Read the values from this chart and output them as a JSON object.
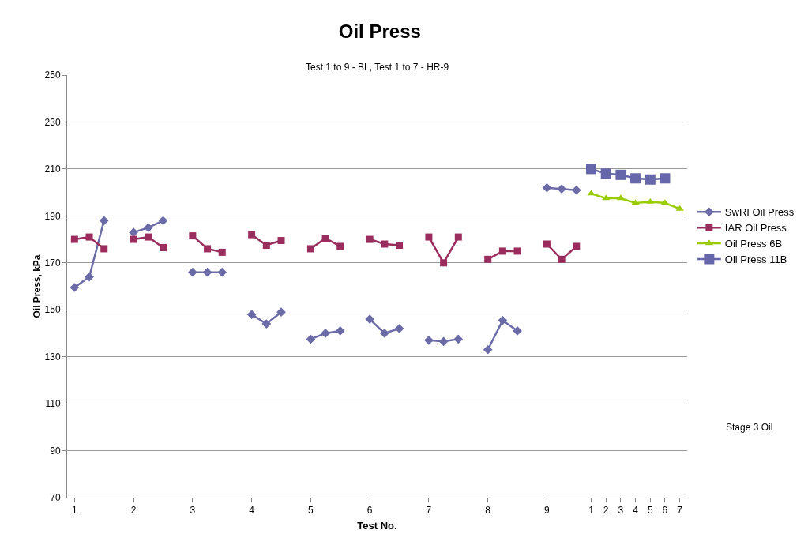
{
  "chart_data": {
    "type": "line",
    "title": "Oil Press",
    "subtitle": "Test 1 to 9 - BL, Test 1 to 7 - HR-9",
    "xlabel": "Test No.",
    "ylabel": "Oil Press, kPa",
    "categories": [
      "1",
      null,
      null,
      null,
      "2",
      null,
      null,
      null,
      "3",
      null,
      null,
      null,
      "4",
      null,
      null,
      null,
      "5",
      null,
      null,
      null,
      "6",
      null,
      null,
      null,
      "7",
      null,
      null,
      null,
      "8",
      null,
      null,
      null,
      "9",
      null,
      null,
      "1",
      "2",
      "3",
      "4",
      "5",
      "6",
      "7"
    ],
    "series": [
      {
        "name": "SwRI Oil Press",
        "color": "#6b6ba8",
        "marker": "diamond",
        "values": [
          159.5,
          164,
          188,
          null,
          183,
          185,
          188,
          null,
          166,
          166,
          166,
          null,
          148,
          144,
          149,
          null,
          137.5,
          140,
          141,
          null,
          146,
          140,
          142,
          null,
          137,
          136.5,
          137.5,
          null,
          133,
          145.5,
          141,
          null,
          202,
          201.5,
          201,
          null,
          null,
          null,
          null,
          null,
          null,
          null
        ]
      },
      {
        "name": "IAR Oil Press",
        "color": "#9b2d5e",
        "marker": "square",
        "values": [
          180,
          181,
          176,
          null,
          180,
          181,
          176.5,
          null,
          181.5,
          176,
          174.5,
          null,
          182,
          177.5,
          179.5,
          null,
          176,
          180.5,
          177,
          null,
          180,
          178,
          177.5,
          null,
          181,
          170,
          181,
          null,
          171.5,
          175,
          175,
          null,
          178,
          171.5,
          177,
          null,
          null,
          null,
          null,
          null,
          null,
          null
        ]
      },
      {
        "name": "Oil Press 6B",
        "color": "#99cc00",
        "marker": "triangle",
        "values": [
          null,
          null,
          null,
          null,
          null,
          null,
          null,
          null,
          null,
          null,
          null,
          null,
          null,
          null,
          null,
          null,
          null,
          null,
          null,
          null,
          null,
          null,
          null,
          null,
          null,
          null,
          null,
          null,
          null,
          null,
          null,
          null,
          null,
          null,
          null,
          199.5,
          197.5,
          197.5,
          195.5,
          196,
          195.5,
          193
        ]
      },
      {
        "name": "Oil Press 11B",
        "color": "#6666aa",
        "marker": "square",
        "values": [
          null,
          null,
          null,
          null,
          null,
          null,
          null,
          null,
          null,
          null,
          null,
          null,
          null,
          null,
          null,
          null,
          null,
          null,
          null,
          null,
          null,
          null,
          null,
          null,
          null,
          null,
          null,
          null,
          null,
          null,
          null,
          null,
          null,
          null,
          null,
          210,
          208,
          207.5,
          206,
          205.5,
          206,
          null
        ]
      }
    ],
    "ylim": [
      70,
      250
    ],
    "yticks": [
      70,
      90,
      110,
      130,
      150,
      170,
      190,
      210,
      230,
      250
    ],
    "grid": "y",
    "legend": "right",
    "line_style": "solid",
    "annotations": [
      "Stage 3 Oil"
    ]
  }
}
